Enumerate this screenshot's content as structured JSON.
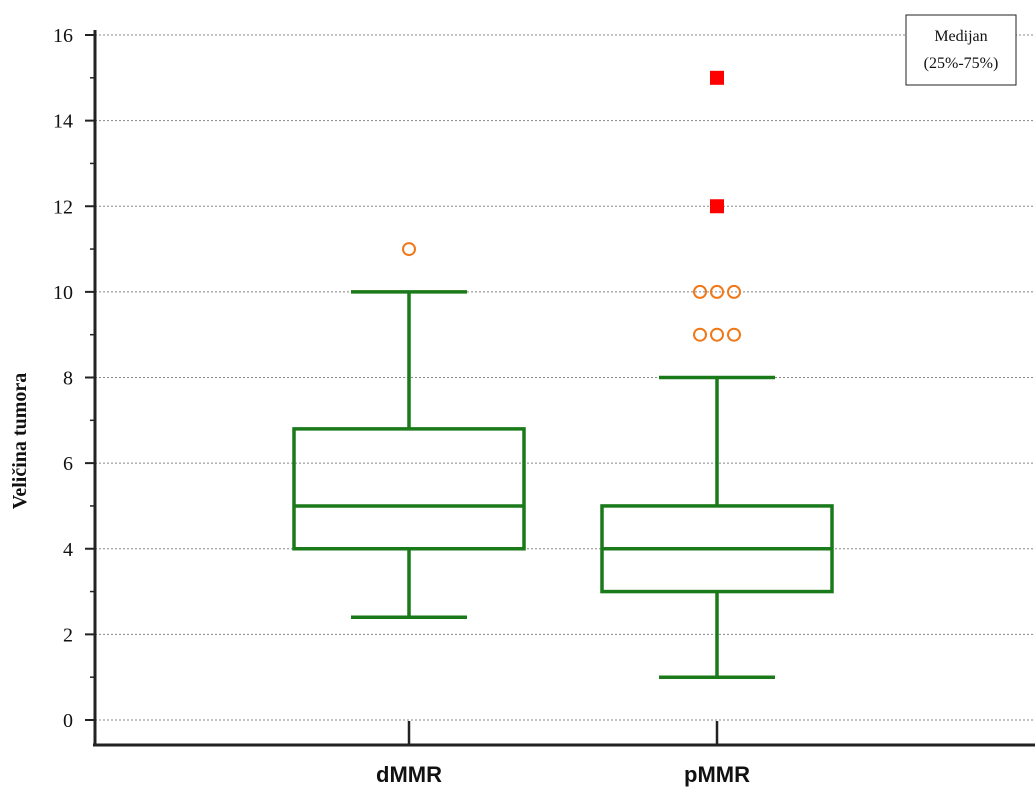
{
  "chart_data": {
    "type": "box",
    "ylabel": "Veličina tumora",
    "xlabel": "",
    "ylim": [
      0,
      16
    ],
    "yticks": [
      0,
      2,
      4,
      6,
      8,
      10,
      12,
      14,
      16
    ],
    "grid": true,
    "legend": {
      "position": "top-right",
      "lines": [
        "Medijan",
        "(25%-75%)"
      ]
    },
    "categories": [
      "dMMR",
      "pMMR"
    ],
    "boxes": [
      {
        "name": "dMMR",
        "whisker_low": 2.4,
        "q1": 4,
        "median": 5,
        "q3": 6.8,
        "whisker_high": 10,
        "outliers": [
          11
        ],
        "extremes": []
      },
      {
        "name": "pMMR",
        "whisker_low": 1,
        "q1": 3,
        "median": 4,
        "q3": 5,
        "whisker_high": 8,
        "outliers": [
          9,
          9,
          9,
          10,
          10,
          10
        ],
        "extremes": [
          12,
          15
        ]
      }
    ],
    "colors": {
      "box": "#1a7a1a",
      "outlier": "#f07818",
      "extreme": "#ff0000",
      "axis": "#222222",
      "grid": "#888888"
    }
  }
}
